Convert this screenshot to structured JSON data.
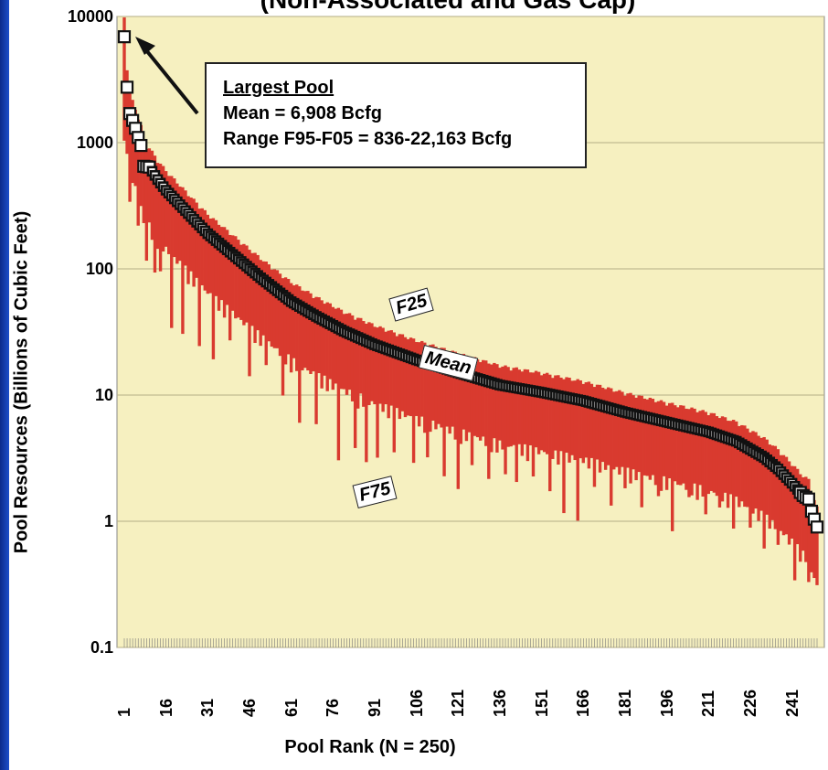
{
  "title": "(Non-Associated and Gas Cap)",
  "callout": {
    "heading": "Largest Pool",
    "line1": "Mean = 6,908 Bcfg",
    "line2": "Range F95-F05 = 836-22,163 Bcfg"
  },
  "annotations": {
    "f25": "F25",
    "mean": "Mean",
    "f75": "F75"
  },
  "chart_data": {
    "type": "bar",
    "xlabel": "Pool Rank (N = 250)",
    "ylabel": "Pool Resources (Billions of Cubic Feet)",
    "yscale": "log",
    "ylim": [
      0.1,
      10000
    ],
    "yticks": [
      "0.1",
      "1",
      "10",
      "100",
      "1000",
      "10000"
    ],
    "xticks": [
      "1",
      "16",
      "31",
      "46",
      "61",
      "76",
      "91",
      "106",
      "121",
      "136",
      "151",
      "166",
      "181",
      "196",
      "211",
      "226",
      "241"
    ],
    "n": 250,
    "largest_pool_mean": 6908,
    "grid": true,
    "colors": {
      "plot_bg": "#f6f0c0",
      "bars": "#d93a2f",
      "markers": "#111111",
      "gridline": "#b4ae86"
    },
    "mean_anchors": [
      [
        1,
        6908
      ],
      [
        2,
        2750
      ],
      [
        3,
        1700
      ],
      [
        4,
        1500
      ],
      [
        5,
        1300
      ],
      [
        6,
        1100
      ],
      [
        7,
        950
      ],
      [
        8,
        650
      ],
      [
        10,
        640
      ],
      [
        13,
        510
      ],
      [
        16,
        420
      ],
      [
        20,
        340
      ],
      [
        25,
        260
      ],
      [
        31,
        190
      ],
      [
        40,
        130
      ],
      [
        50,
        85
      ],
      [
        61,
        55
      ],
      [
        70,
        42
      ],
      [
        80,
        32
      ],
      [
        91,
        25
      ],
      [
        106,
        19
      ],
      [
        121,
        15
      ],
      [
        136,
        12
      ],
      [
        151,
        10.5
      ],
      [
        166,
        9
      ],
      [
        181,
        7.3
      ],
      [
        196,
        6.1
      ],
      [
        211,
        5.1
      ],
      [
        221,
        4.3
      ],
      [
        231,
        3.2
      ],
      [
        236,
        2.6
      ],
      [
        241,
        2.0
      ],
      [
        245,
        1.6
      ],
      [
        247,
        1.5
      ],
      [
        248,
        1.2
      ],
      [
        250,
        0.9
      ]
    ],
    "f25_factor": 1.35,
    "f75_factor": 0.32,
    "f75_dips": [
      [
        3,
        0.2
      ],
      [
        6,
        0.2
      ],
      [
        9,
        0.18
      ],
      [
        12,
        0.17
      ],
      [
        14,
        0.2
      ],
      [
        18,
        0.09
      ],
      [
        22,
        0.1
      ],
      [
        28,
        0.11
      ],
      [
        33,
        0.11
      ],
      [
        39,
        0.2
      ],
      [
        46,
        0.14
      ],
      [
        52,
        0.22
      ],
      [
        58,
        0.16
      ],
      [
        64,
        0.12
      ],
      [
        70,
        0.14
      ],
      [
        78,
        0.09
      ],
      [
        84,
        0.13
      ],
      [
        88,
        0.11
      ],
      [
        92,
        0.13
      ],
      [
        98,
        0.16
      ],
      [
        105,
        0.15
      ],
      [
        110,
        0.18
      ],
      [
        116,
        0.14
      ],
      [
        121,
        0.12
      ],
      [
        126,
        0.2
      ],
      [
        132,
        0.17
      ],
      [
        138,
        0.2
      ],
      [
        142,
        0.18
      ],
      [
        148,
        0.21
      ],
      [
        154,
        0.17
      ],
      [
        159,
        0.12
      ],
      [
        164,
        0.11
      ],
      [
        170,
        0.22
      ],
      [
        176,
        0.17
      ],
      [
        181,
        0.25
      ],
      [
        187,
        0.19
      ],
      [
        193,
        0.25
      ],
      [
        198,
        0.14
      ],
      [
        204,
        0.28
      ],
      [
        210,
        0.22
      ],
      [
        215,
        0.27
      ],
      [
        220,
        0.2
      ],
      [
        226,
        0.24
      ],
      [
        231,
        0.19
      ],
      [
        236,
        0.25
      ],
      [
        242,
        0.18
      ],
      [
        247,
        0.22
      ]
    ]
  }
}
